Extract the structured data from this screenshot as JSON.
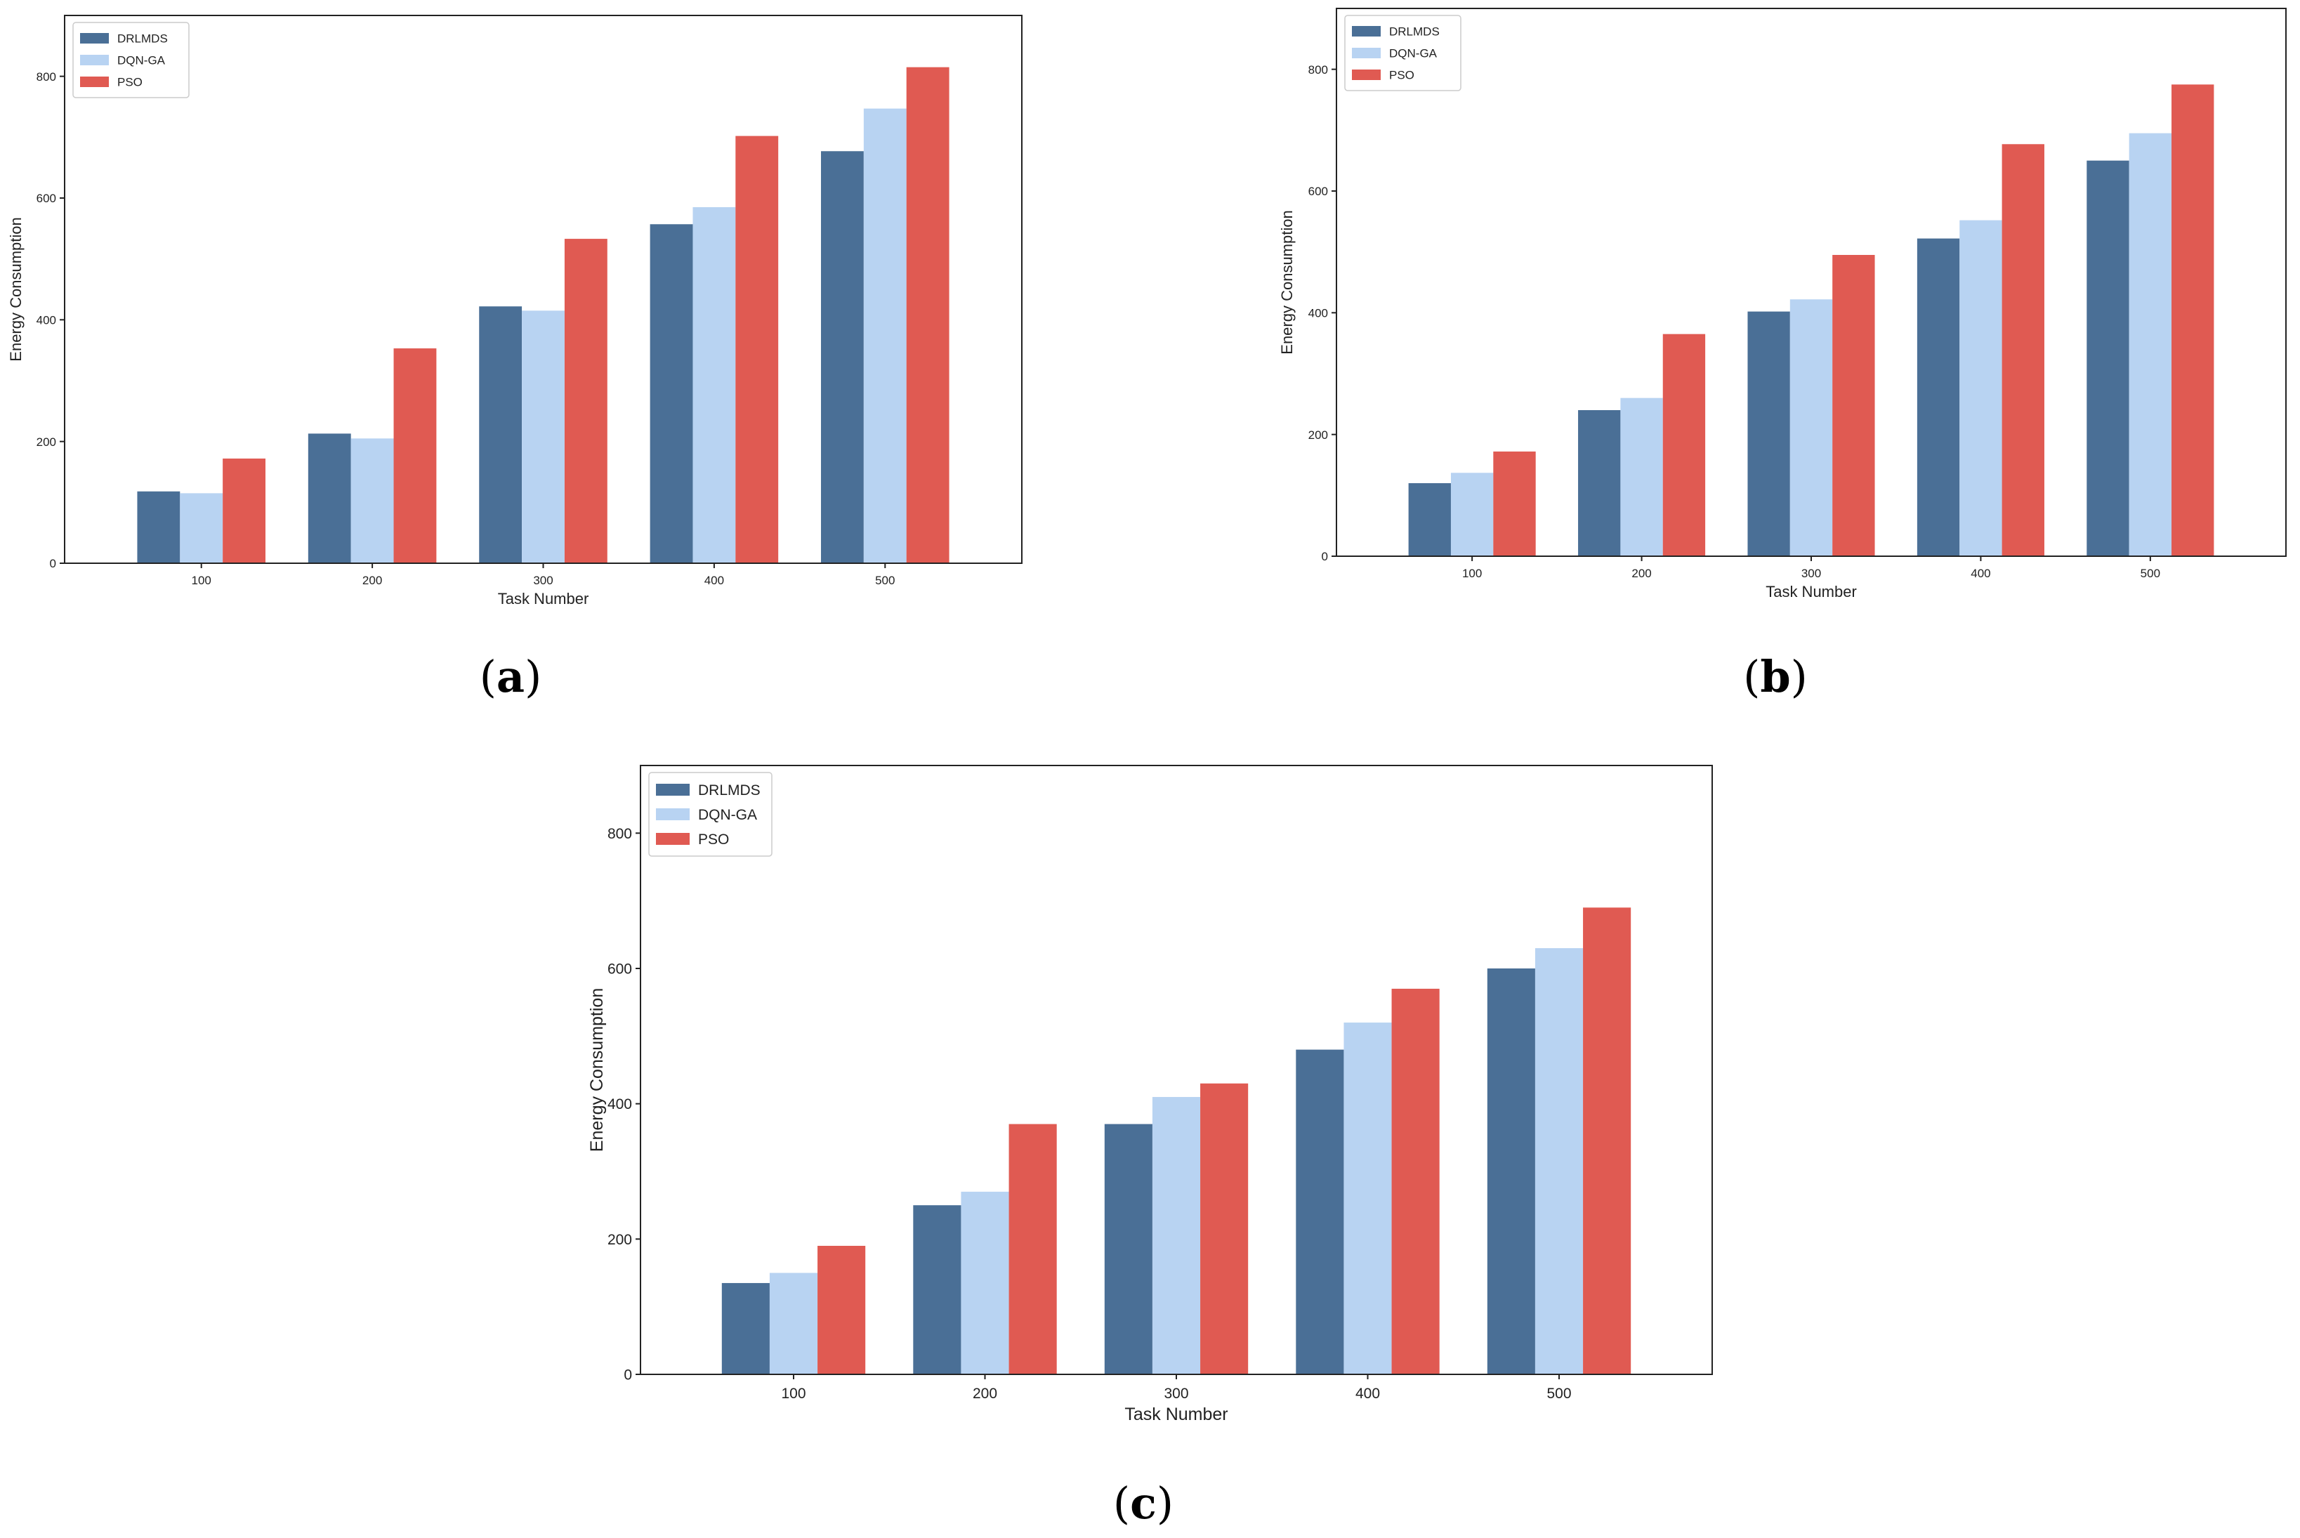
{
  "colors": {
    "DRLMDS": "#4a6f96",
    "DQN-GA": "#b8d3f2",
    "PSO": "#e05a52",
    "axis": "#222222"
  },
  "chart_data": [
    {
      "type": "bar",
      "panel": "a",
      "caption_letter": "a",
      "xlabel": "Task Number",
      "ylabel": "Energy Consumption",
      "categories": [
        "100",
        "200",
        "300",
        "400",
        "500"
      ],
      "yticks": [
        "0",
        "200",
        "400",
        "600",
        "800"
      ],
      "ylim": [
        0,
        900
      ],
      "legend_position": "top-left",
      "series": [
        {
          "name": "DRLMDS",
          "values": [
            118,
            213,
            422,
            557,
            677
          ]
        },
        {
          "name": "DQN-GA",
          "values": [
            115,
            205,
            415,
            585,
            747
          ]
        },
        {
          "name": "PSO",
          "values": [
            172,
            353,
            533,
            702,
            815
          ]
        }
      ]
    },
    {
      "type": "bar",
      "panel": "b",
      "caption_letter": "b",
      "xlabel": "Task Number",
      "ylabel": "Energy Consumption",
      "categories": [
        "100",
        "200",
        "300",
        "400",
        "500"
      ],
      "yticks": [
        "0",
        "200",
        "400",
        "600",
        "800"
      ],
      "ylim": [
        0,
        900
      ],
      "legend_position": "top-left",
      "series": [
        {
          "name": "DRLMDS",
          "values": [
            120,
            240,
            402,
            522,
            650
          ]
        },
        {
          "name": "DQN-GA",
          "values": [
            137,
            260,
            422,
            552,
            695
          ]
        },
        {
          "name": "PSO",
          "values": [
            172,
            365,
            495,
            677,
            775
          ]
        }
      ]
    },
    {
      "type": "bar",
      "panel": "c",
      "caption_letter": "c",
      "xlabel": "Task Number",
      "ylabel": "Energy Consumption",
      "categories": [
        "100",
        "200",
        "300",
        "400",
        "500"
      ],
      "yticks": [
        "0",
        "200",
        "400",
        "600",
        "800"
      ],
      "ylim": [
        0,
        900
      ],
      "legend_position": "top-left",
      "series": [
        {
          "name": "DRLMDS",
          "values": [
            135,
            250,
            370,
            480,
            600
          ]
        },
        {
          "name": "DQN-GA",
          "values": [
            150,
            270,
            410,
            520,
            630
          ]
        },
        {
          "name": "PSO",
          "values": [
            190,
            370,
            430,
            570,
            690
          ]
        }
      ]
    }
  ]
}
